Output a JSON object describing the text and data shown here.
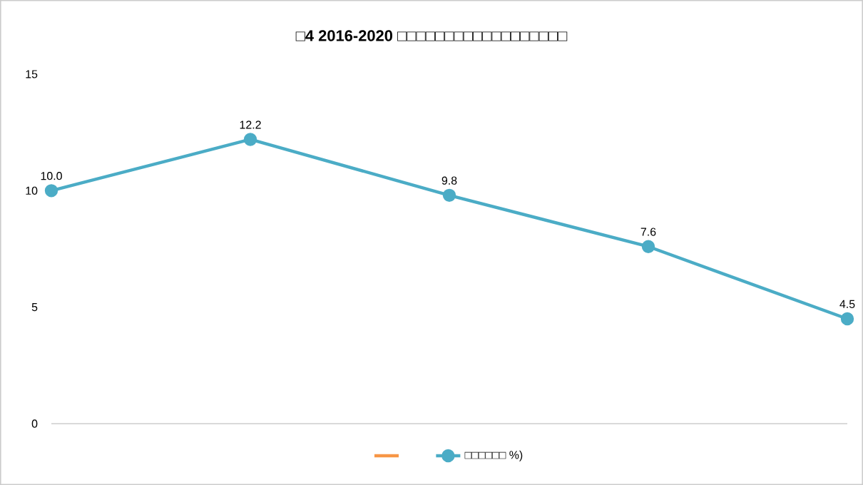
{
  "chart_data": {
    "type": "line",
    "title": "□4 2016-2020 □□□□□□□□□□□□□□□□□□",
    "categories": [
      null,
      null,
      null,
      null,
      null
    ],
    "series": [
      {
        "color": "#f79646",
        "values": [
          null,
          null,
          null,
          null,
          null
        ]
      },
      {
        "name": "□□□□□□ %)",
        "color": "#4bacc6",
        "values": [
          10.0,
          12.2,
          9.8,
          7.6,
          4.5
        ],
        "value_labels": [
          "10.0",
          "12.2",
          "9.8",
          "7.6",
          "4.5"
        ]
      }
    ],
    "ylim": [
      0,
      15
    ],
    "yticks": [
      0,
      5,
      10,
      15
    ],
    "marker": "circle",
    "legend": "bottom",
    "grid": false
  }
}
